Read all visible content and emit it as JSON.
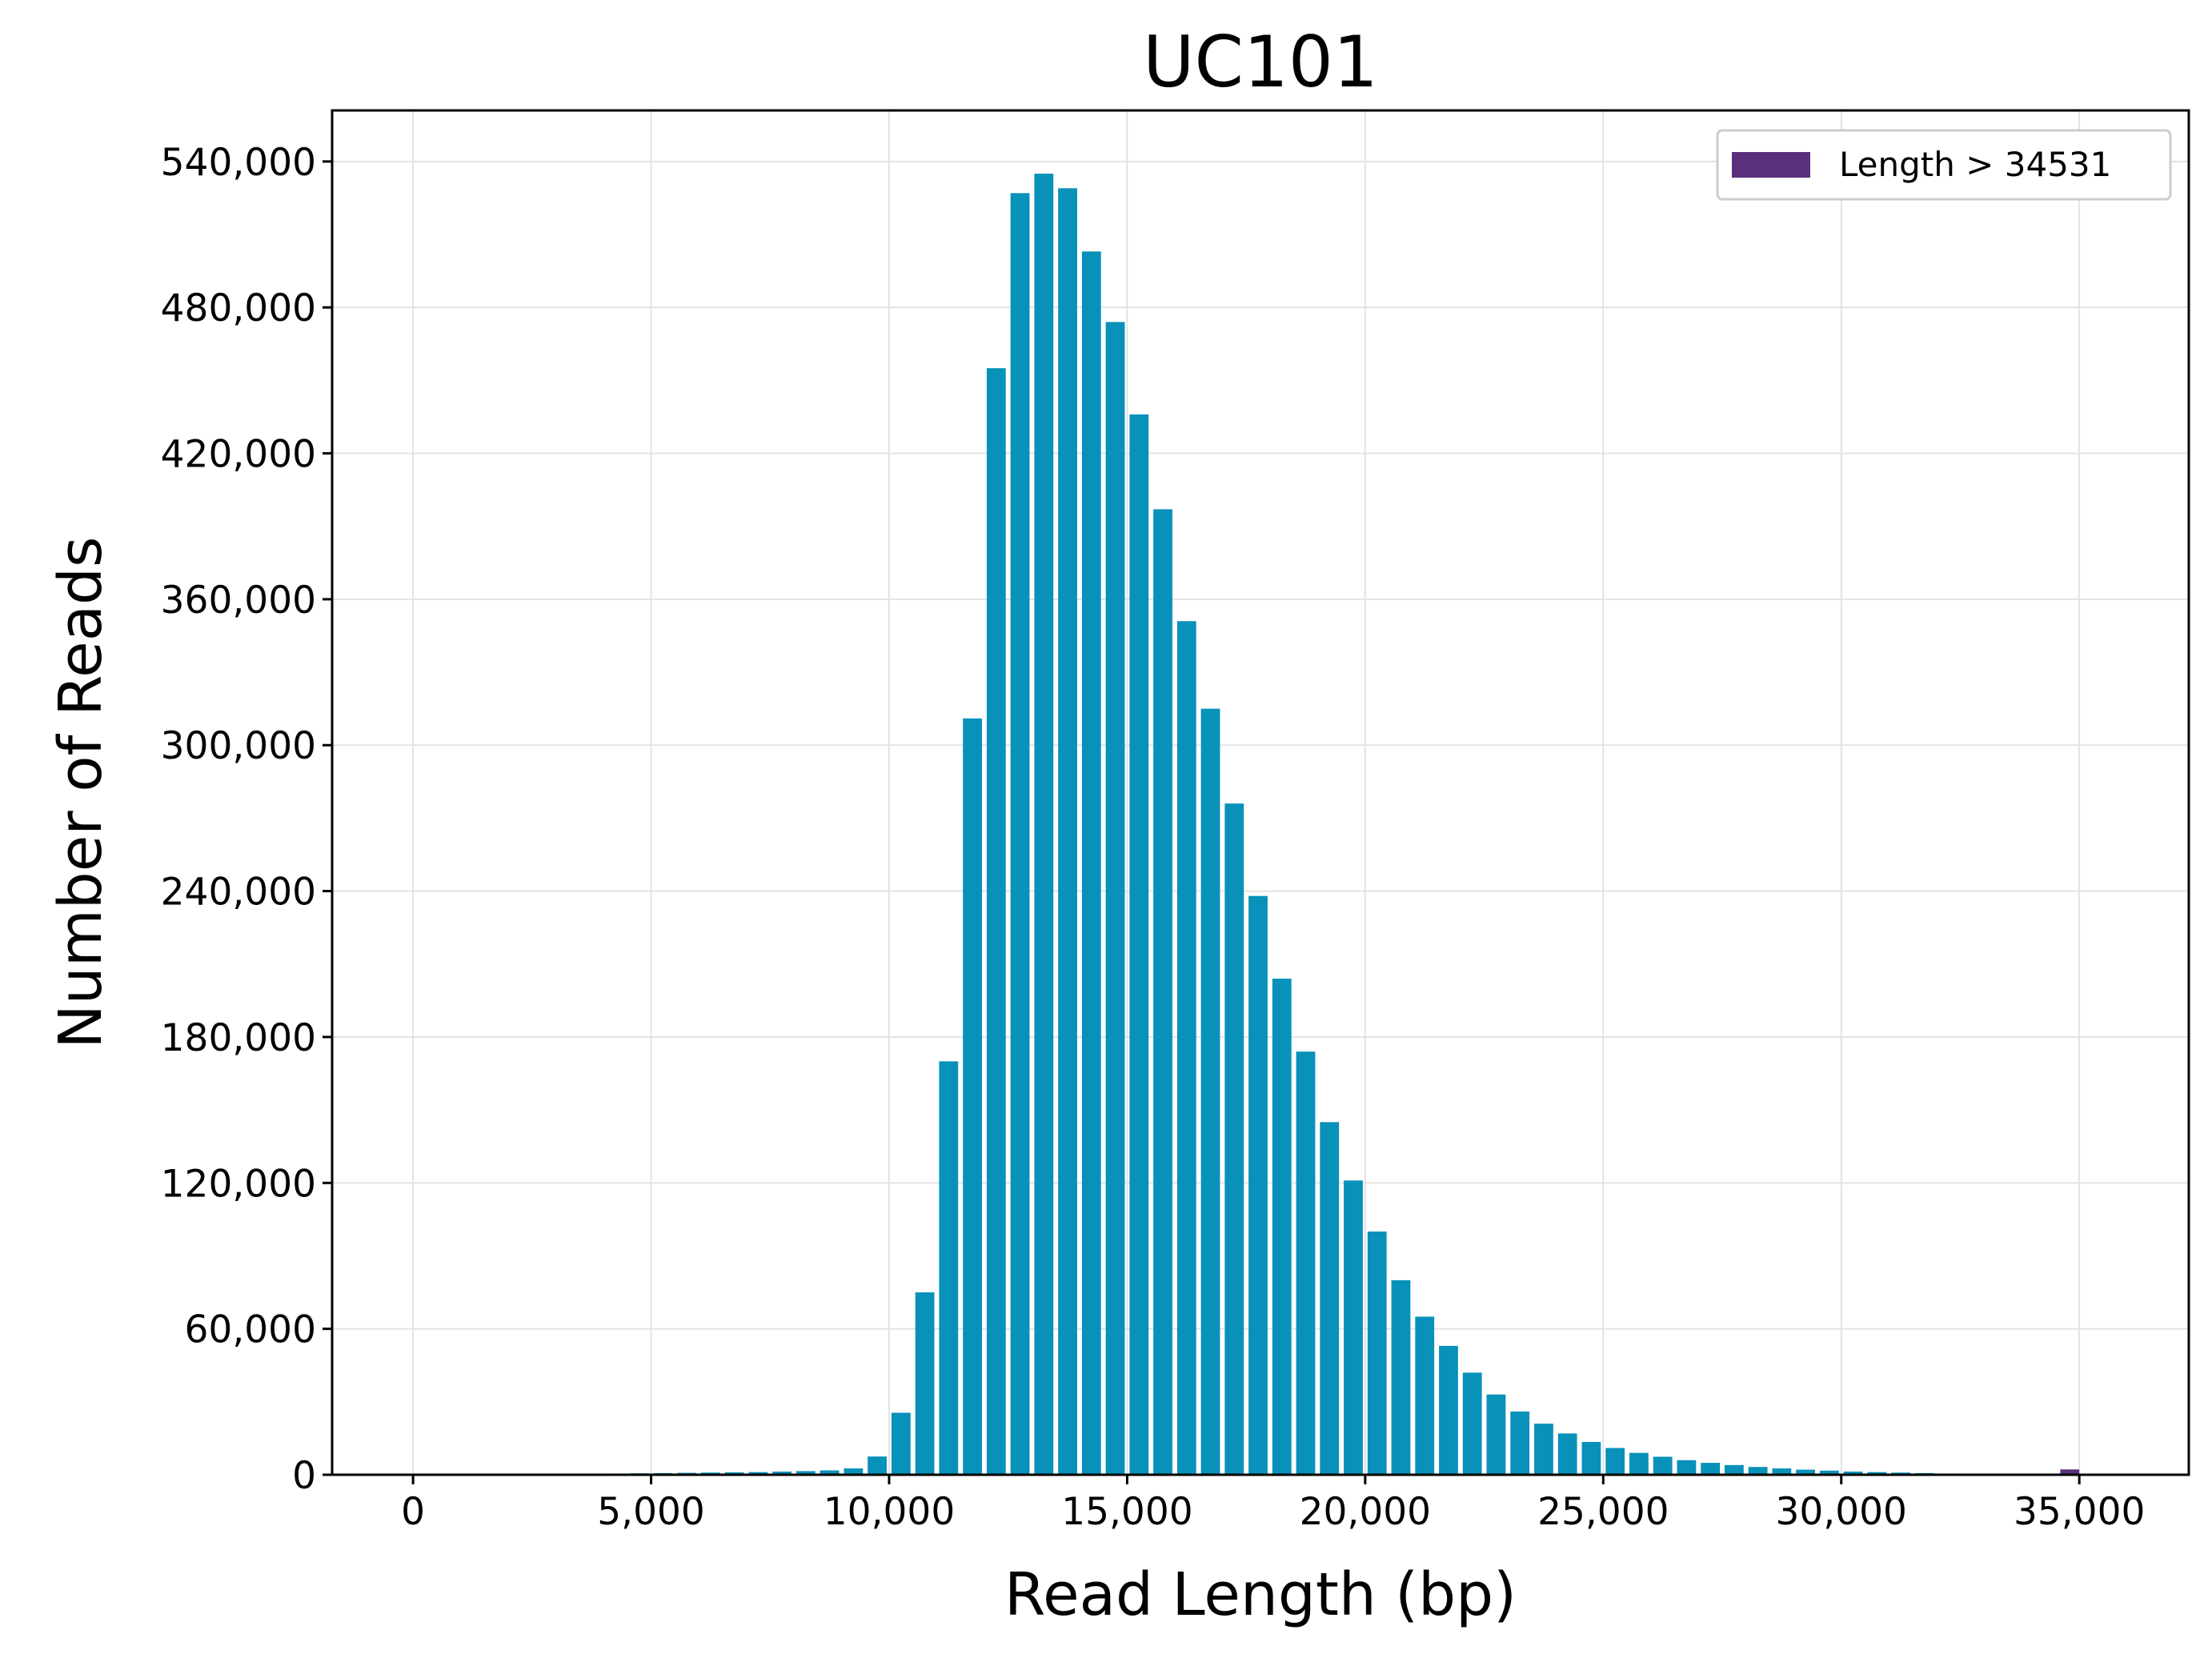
{
  "chart_data": {
    "type": "bar",
    "title": "UC101",
    "xlabel": "Read Length (bp)",
    "ylabel": "Number of Reads",
    "xlim": [
      -1700,
      37300
    ],
    "ylim": [
      0,
      561000
    ],
    "xticks": [
      0,
      5000,
      10000,
      15000,
      20000,
      25000,
      30000,
      35000
    ],
    "xtick_labels": [
      "0",
      "5,000",
      "10,000",
      "15,000",
      "20,000",
      "25,000",
      "30,000",
      "35,000"
    ],
    "yticks": [
      0,
      60000,
      120000,
      180000,
      240000,
      300000,
      360000,
      420000,
      480000,
      540000
    ],
    "ytick_labels": [
      "0",
      "60,000",
      "120,000",
      "180,000",
      "240,000",
      "300,000",
      "360,000",
      "420,000",
      "480,000",
      "540,000"
    ],
    "grid": true,
    "legend_position": "top-right",
    "bin_width": 500,
    "series": [
      {
        "color": "#0891b9",
        "x": [
          3250,
          3750,
          4250,
          4750,
          5250,
          5750,
          6250,
          6750,
          7250,
          7750,
          8250,
          8750,
          9250,
          9750,
          10250,
          10750,
          11250,
          11750,
          12250,
          12750,
          13250,
          13750,
          14250,
          14750,
          15250,
          15750,
          16250,
          16750,
          17250,
          17750,
          18250,
          18750,
          19250,
          19750,
          20250,
          20750,
          21250,
          21750,
          22250,
          22750,
          23250,
          23750,
          24250,
          24750,
          25250,
          25750,
          26250,
          26750,
          27250,
          27750,
          28250,
          28750,
          29250,
          29750,
          30250,
          30750,
          31250,
          31750,
          32250
        ],
        "values": [
          300,
          400,
          500,
          600,
          700,
          800,
          900,
          1000,
          1100,
          1300,
          1500,
          1800,
          2600,
          7500,
          25500,
          75000,
          170000,
          311000,
          455000,
          527000,
          535000,
          529000,
          503000,
          474000,
          436000,
          397000,
          351000,
          315000,
          276000,
          238000,
          204000,
          174000,
          145000,
          121000,
          100000,
          80000,
          65000,
          53000,
          42000,
          33000,
          26000,
          21000,
          17000,
          13500,
          11000,
          9000,
          7400,
          6000,
          4900,
          4000,
          3200,
          2600,
          2100,
          1700,
          1300,
          1100,
          900,
          700,
          500
        ]
      },
      {
        "name": "Length > 34531",
        "color": "#5a307b",
        "x": [
          34800
        ],
        "values": [
          2200
        ]
      }
    ]
  }
}
